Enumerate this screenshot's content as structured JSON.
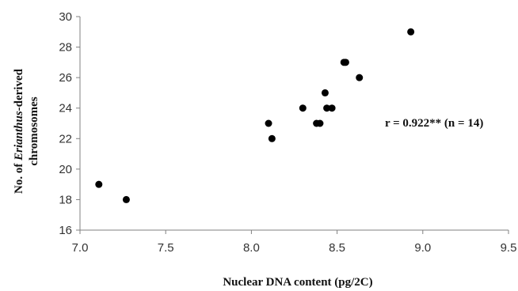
{
  "chart_data": {
    "type": "scatter",
    "xlabel": "Nuclear DNA content (pg/2C)",
    "ylabel_line1_prefix": "No. of ",
    "ylabel_line1_italic": "Erianthus",
    "ylabel_line1_suffix": "-derived",
    "ylabel_line2": "chromosomes",
    "annotation": "r = 0.922** (n = 14)",
    "xlim": [
      7.0,
      9.5
    ],
    "ylim": [
      16,
      30
    ],
    "x_ticks": [
      7.0,
      7.5,
      8.0,
      8.5,
      9.0,
      9.5
    ],
    "x_tick_labels": [
      "7.0",
      "7.5",
      "8.0",
      "8.5",
      "9.0",
      "9.5"
    ],
    "y_ticks": [
      16,
      18,
      20,
      22,
      24,
      26,
      28,
      30
    ],
    "y_tick_labels": [
      "16",
      "18",
      "20",
      "22",
      "24",
      "26",
      "28",
      "30"
    ],
    "grid": false,
    "marker_color": "#000000",
    "points": [
      {
        "x": 7.11,
        "y": 19
      },
      {
        "x": 7.27,
        "y": 18
      },
      {
        "x": 8.1,
        "y": 23
      },
      {
        "x": 8.12,
        "y": 22
      },
      {
        "x": 8.3,
        "y": 24
      },
      {
        "x": 8.38,
        "y": 23
      },
      {
        "x": 8.4,
        "y": 23
      },
      {
        "x": 8.43,
        "y": 25
      },
      {
        "x": 8.44,
        "y": 24
      },
      {
        "x": 8.47,
        "y": 24
      },
      {
        "x": 8.54,
        "y": 27
      },
      {
        "x": 8.55,
        "y": 27
      },
      {
        "x": 8.63,
        "y": 26
      },
      {
        "x": 8.93,
        "y": 29
      }
    ]
  }
}
